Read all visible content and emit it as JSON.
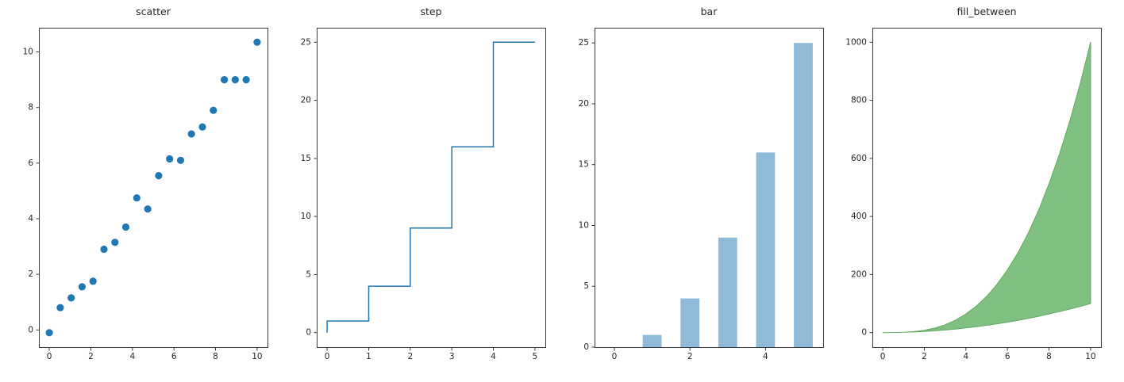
{
  "axis_style": {
    "spine_color": "#3a3a3a",
    "tick_color": "#3a3a3a",
    "tick_label_color": "#262626",
    "title_color": "#262626"
  },
  "chart_data": [
    {
      "type": "scatter",
      "title": "scatter",
      "x": [
        0.0,
        0.526,
        1.053,
        1.579,
        2.105,
        2.632,
        3.158,
        3.684,
        4.211,
        4.737,
        5.263,
        5.789,
        6.316,
        6.842,
        7.368,
        7.895,
        8.421,
        8.947,
        9.474,
        10.0
      ],
      "y": [
        -0.1,
        0.8,
        1.15,
        1.55,
        1.75,
        2.9,
        3.15,
        3.7,
        4.75,
        4.35,
        5.55,
        6.15,
        6.1,
        7.05,
        7.3,
        7.9,
        9.0,
        9.0,
        9.0,
        10.35
      ],
      "marker_color": "#1f77b4",
      "marker_radius": 4.6,
      "xlim": [
        -0.5,
        10.5
      ],
      "ylim": [
        -0.62,
        10.87
      ],
      "xticks": [
        0,
        2,
        4,
        6,
        8,
        10
      ],
      "yticks": [
        0,
        2,
        4,
        6,
        8,
        10
      ]
    },
    {
      "type": "step",
      "title": "step",
      "x": [
        0,
        1,
        2,
        3,
        4,
        5
      ],
      "y": [
        0,
        1,
        4,
        9,
        16,
        25
      ],
      "step_where": "pre",
      "line_color": "#1f77b4",
      "line_width": 1.5,
      "xlim": [
        -0.25,
        5.25
      ],
      "ylim": [
        -1.25,
        26.25
      ],
      "xticks": [
        0,
        1,
        2,
        3,
        4,
        5
      ],
      "yticks": [
        0,
        5,
        10,
        15,
        20,
        25
      ]
    },
    {
      "type": "bar",
      "title": "bar",
      "x": [
        0,
        1,
        2,
        3,
        4,
        5
      ],
      "values": [
        0,
        1,
        4,
        9,
        16,
        25
      ],
      "bar_width": 0.5,
      "bar_color": "#8fbbd9",
      "xlim": [
        -0.525,
        5.525
      ],
      "ylim": [
        0,
        26.25
      ],
      "xticks": [
        0,
        2,
        4
      ],
      "yticks": [
        0,
        5,
        10,
        15,
        20,
        25
      ]
    },
    {
      "type": "area",
      "title": "fill_between",
      "x": [
        0,
        0.5,
        1,
        1.5,
        2,
        2.5,
        3,
        3.5,
        4,
        4.5,
        5,
        5.5,
        6,
        6.5,
        7,
        7.5,
        8,
        8.5,
        9,
        9.5,
        10
      ],
      "y_lower": [
        0,
        0.25,
        1,
        2.25,
        4,
        6.25,
        9,
        12.25,
        16,
        20.25,
        25,
        30.25,
        36,
        42.25,
        49,
        56.25,
        64,
        72.25,
        81,
        90.25,
        100
      ],
      "y_upper": [
        0,
        0.125,
        1,
        3.375,
        8,
        15.625,
        27,
        42.875,
        64,
        91.125,
        125,
        166.375,
        216,
        274.625,
        343,
        421.875,
        512,
        614.125,
        729,
        857.375,
        1000
      ],
      "fill_color": "#80c080",
      "edge_color": "#63aa63",
      "xlim": [
        -0.5,
        10.5
      ],
      "ylim": [
        -50,
        1050
      ],
      "xticks": [
        0,
        2,
        4,
        6,
        8,
        10
      ],
      "yticks": [
        0,
        200,
        400,
        600,
        800,
        1000
      ]
    }
  ]
}
